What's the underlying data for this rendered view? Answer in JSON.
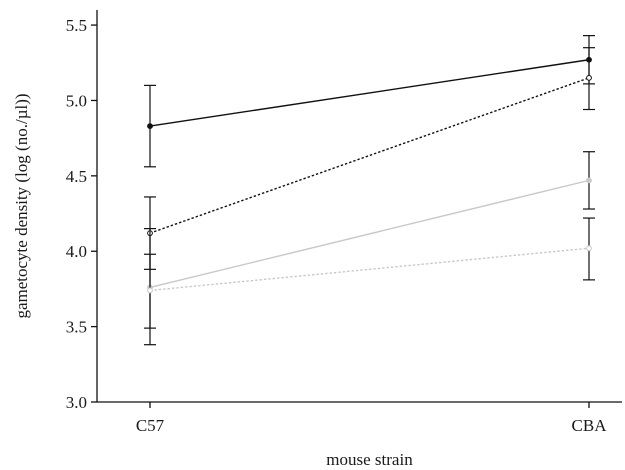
{
  "chart_data": {
    "type": "line",
    "title": "",
    "xlabel": "mouse strain",
    "ylabel": "gametocyte density (log (no./µl))",
    "categories": [
      "C57",
      "CBA"
    ],
    "ylim": [
      3.0,
      5.6
    ],
    "yticks": [
      3.0,
      3.5,
      4.0,
      4.5,
      5.0,
      5.5
    ],
    "ytick_labels": [
      "3.0",
      "3.5",
      "4.0",
      "4.5",
      "5.0",
      "5.5"
    ],
    "grid": false,
    "legend": "none",
    "series": [
      {
        "values": [
          4.83,
          5.27
        ],
        "error_low": [
          4.56,
          5.11
        ],
        "error_high": [
          5.1,
          5.43
        ],
        "color": "#111111",
        "line_style": "solid",
        "marker": "filled-circle"
      },
      {
        "values": [
          4.12,
          5.15
        ],
        "error_low": [
          3.88,
          4.94
        ],
        "error_high": [
          4.36,
          5.35
        ],
        "color": "#111111",
        "line_style": "dotted",
        "marker": "open-circle"
      },
      {
        "values": [
          3.76,
          4.47
        ],
        "error_low": [
          3.38,
          4.28
        ],
        "error_high": [
          4.15,
          4.66
        ],
        "color": "#c8c8c8",
        "line_style": "solid",
        "marker": "filled-circle"
      },
      {
        "values": [
          3.74,
          4.02
        ],
        "error_low": [
          3.49,
          3.81
        ],
        "error_high": [
          3.98,
          4.22
        ],
        "color": "#c8c8c8",
        "line_style": "dotted",
        "marker": "open-circle"
      }
    ]
  }
}
